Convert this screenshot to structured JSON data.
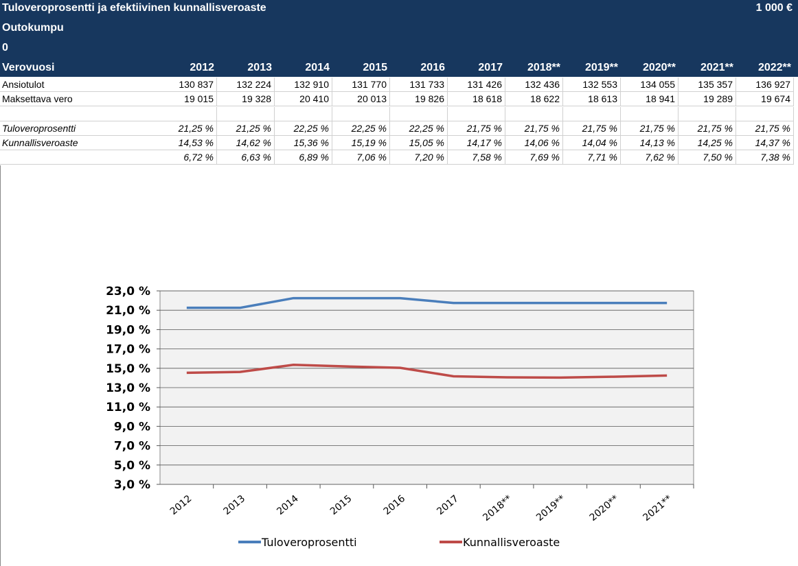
{
  "header": {
    "title": "Tuloveroprosentti ja efektiivinen kunnallisveroaste",
    "unit": "1 000 €",
    "company": "Outokumpu",
    "code": "0"
  },
  "table": {
    "columns_label": "Verovuosi",
    "years": [
      "2012",
      "2013",
      "2014",
      "2015",
      "2016",
      "2017",
      "2018**",
      "2019**",
      "2020**",
      "2021**",
      "2022**"
    ],
    "amounts": [
      {
        "label": "Ansiotulot",
        "cells": [
          "130 837",
          "132 224",
          "132 910",
          "131 770",
          "131 733",
          "131 426",
          "132 436",
          "132 553",
          "134 055",
          "135 357",
          "136 927"
        ]
      },
      {
        "label": "Maksettava vero",
        "cells": [
          "19 015",
          "19 328",
          "20 410",
          "20 013",
          "19 826",
          "18 618",
          "18 622",
          "18 613",
          "18 941",
          "19 289",
          "19 674"
        ]
      }
    ],
    "rates": [
      {
        "label": "Tuloveroprosentti",
        "cells": [
          "21,25 %",
          "21,25 %",
          "22,25 %",
          "22,25 %",
          "22,25 %",
          "21,75 %",
          "21,75 %",
          "21,75 %",
          "21,75 %",
          "21,75 %",
          "21,75 %"
        ]
      },
      {
        "label": "Kunnallisveroaste",
        "cells": [
          "14,53 %",
          "14,62 %",
          "15,36 %",
          "15,19 %",
          "15,05 %",
          "14,17 %",
          "14,06 %",
          "14,04 %",
          "14,13 %",
          "14,25 %",
          "14,37 %"
        ]
      },
      {
        "cells": [
          "6,72 %",
          "6,63 %",
          "6,89 %",
          "7,06 %",
          "7,20 %",
          "7,58 %",
          "7,69 %",
          "7,71 %",
          "7,62 %",
          "7,50 %",
          "7,38 %"
        ]
      }
    ]
  },
  "chart_data": {
    "type": "line",
    "categories": [
      "2012",
      "2013",
      "2014",
      "2015",
      "2016",
      "2017",
      "2018**",
      "2019**",
      "2020**",
      "2021**"
    ],
    "series": [
      {
        "name": "Tuloveroprosentti",
        "color": "#4a7ebb",
        "values": [
          21.25,
          21.25,
          22.25,
          22.25,
          22.25,
          21.75,
          21.75,
          21.75,
          21.75,
          21.75
        ]
      },
      {
        "name": "Kunnallisveroaste",
        "color": "#be4b48",
        "values": [
          14.53,
          14.62,
          15.36,
          15.19,
          15.05,
          14.17,
          14.06,
          14.04,
          14.13,
          14.25
        ]
      }
    ],
    "ylim": [
      3,
      23
    ],
    "yticks": [
      {
        "value": 3,
        "label": "3,0 %"
      },
      {
        "value": 5,
        "label": "5,0 %"
      },
      {
        "value": 7,
        "label": "7,0 %"
      },
      {
        "value": 9,
        "label": "9,0 %"
      },
      {
        "value": 11,
        "label": "11,0 %"
      },
      {
        "value": 13,
        "label": "13,0 %"
      },
      {
        "value": 15,
        "label": "15,0 %"
      },
      {
        "value": 17,
        "label": "17,0 %"
      },
      {
        "value": 19,
        "label": "19,0 %"
      },
      {
        "value": 21,
        "label": "21,0 %"
      },
      {
        "value": 23,
        "label": "23,0 %"
      }
    ],
    "grid": true,
    "legend": "bottom"
  }
}
